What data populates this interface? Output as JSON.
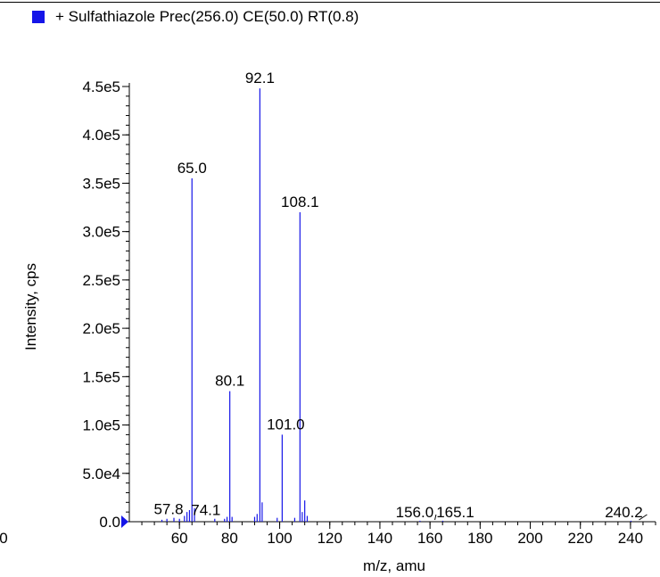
{
  "legend": {
    "label": "+ Sulfathiazole Prec(256.0) CE(50.0) RT(0.8)",
    "color": "#1515e8"
  },
  "chart_data": {
    "type": "bar",
    "title": "",
    "xlabel": "m/z, amu",
    "ylabel": "Intensity, cps",
    "xlim": [
      40,
      250
    ],
    "ylim": [
      0,
      450000
    ],
    "x_ticks": [
      60,
      80,
      100,
      120,
      140,
      160,
      180,
      200,
      220,
      240
    ],
    "x_tick_labels": [
      "60",
      "80",
      "100",
      "120",
      "140",
      "160",
      "180",
      "200",
      "220",
      "240"
    ],
    "x_axis_start_label": "0",
    "y_ticks": [
      0,
      50000,
      100000,
      150000,
      200000,
      250000,
      300000,
      350000,
      400000,
      450000
    ],
    "y_tick_labels": [
      "0.0",
      "5.0e4",
      "1.0e5",
      "1.5e5",
      "2.0e5",
      "2.5e5",
      "3.0e5",
      "3.5e5",
      "4.0e5",
      "4.5e5"
    ],
    "series": [
      {
        "name": "+ Sulfathiazole Prec(256.0) CE(50.0) RT(0.8)",
        "color": "#1515e8",
        "peaks": [
          {
            "mz": 53.0,
            "intensity": 2000
          },
          {
            "mz": 55.0,
            "intensity": 3000
          },
          {
            "mz": 57.8,
            "intensity": 4000
          },
          {
            "mz": 60.0,
            "intensity": 3000
          },
          {
            "mz": 62.0,
            "intensity": 6000
          },
          {
            "mz": 63.0,
            "intensity": 10000
          },
          {
            "mz": 64.0,
            "intensity": 12000
          },
          {
            "mz": 65.0,
            "intensity": 355000
          },
          {
            "mz": 66.0,
            "intensity": 14000
          },
          {
            "mz": 74.1,
            "intensity": 3000
          },
          {
            "mz": 78.0,
            "intensity": 3000
          },
          {
            "mz": 79.0,
            "intensity": 5000
          },
          {
            "mz": 80.1,
            "intensity": 135000
          },
          {
            "mz": 81.0,
            "intensity": 5000
          },
          {
            "mz": 90.0,
            "intensity": 5000
          },
          {
            "mz": 91.0,
            "intensity": 8000
          },
          {
            "mz": 92.1,
            "intensity": 448000
          },
          {
            "mz": 93.0,
            "intensity": 20000
          },
          {
            "mz": 99.0,
            "intensity": 4000
          },
          {
            "mz": 101.0,
            "intensity": 90000
          },
          {
            "mz": 106.0,
            "intensity": 4000
          },
          {
            "mz": 108.1,
            "intensity": 320000
          },
          {
            "mz": 109.0,
            "intensity": 10000
          },
          {
            "mz": 110.0,
            "intensity": 22000
          },
          {
            "mz": 111.0,
            "intensity": 6000
          },
          {
            "mz": 156.0,
            "intensity": 1000
          },
          {
            "mz": 165.1,
            "intensity": 1000
          },
          {
            "mz": 240.2,
            "intensity": 1000
          }
        ]
      }
    ],
    "peak_labels": [
      {
        "text": "92.1",
        "mz": 92.1,
        "intensity": 448000
      },
      {
        "text": "65.0",
        "mz": 65.0,
        "intensity": 355000
      },
      {
        "text": "108.1",
        "mz": 108.1,
        "intensity": 320000
      },
      {
        "text": "80.1",
        "mz": 80.1,
        "intensity": 135000
      },
      {
        "text": "101.0",
        "mz": 101.0,
        "intensity": 90000
      },
      {
        "text": "57.8",
        "mz": 57.8,
        "intensity": 4000
      },
      {
        "text": "74.1",
        "mz": 74.1,
        "intensity": 3000
      },
      {
        "text": "156.0",
        "mz": 156.0,
        "intensity": 1000
      },
      {
        "text": "165.1",
        "mz": 165.1,
        "intensity": 1000
      },
      {
        "text": "240.2",
        "mz": 240.2,
        "intensity": 1000
      }
    ]
  }
}
